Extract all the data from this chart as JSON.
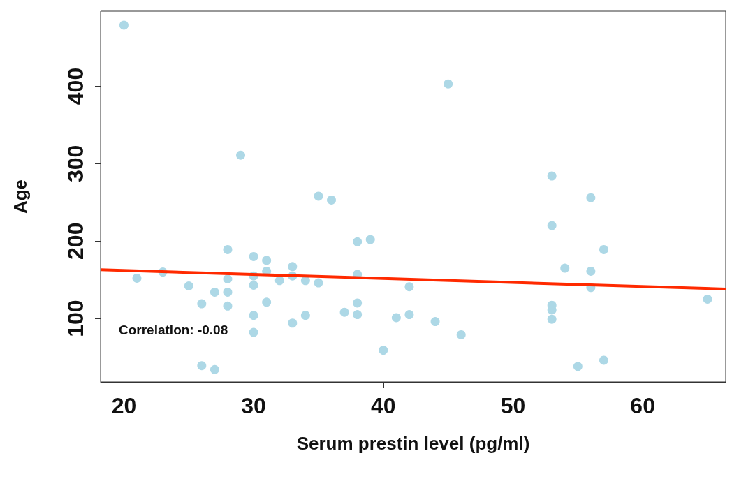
{
  "chart_data": {
    "type": "scatter",
    "xlabel": "Serum prestin level (pg/ml)",
    "ylabel": "Age",
    "xlim": [
      18.2,
      66.4
    ],
    "ylim": [
      18,
      497
    ],
    "xticks": [
      20,
      30,
      40,
      50,
      60
    ],
    "yticks": [
      100,
      200,
      300,
      400
    ],
    "grid": false,
    "marker": "circle",
    "annotations": [
      "Correlation: -0.08"
    ],
    "series": [
      {
        "color": "#add8e6",
        "x": [
          20,
          21,
          23,
          25,
          26,
          26,
          27,
          27,
          28,
          28,
          28,
          28,
          29,
          30,
          30,
          30,
          30,
          30,
          31,
          31,
          31,
          32,
          33,
          33,
          33,
          34,
          34,
          35,
          35,
          36,
          37,
          38,
          38,
          38,
          38,
          39,
          40,
          41,
          42,
          42,
          44,
          45,
          46,
          53,
          53,
          53,
          53,
          53,
          54,
          55,
          56,
          56,
          56,
          57,
          57,
          65
        ],
        "values": [
          479,
          152,
          160,
          142,
          119,
          39,
          134,
          34,
          189,
          151,
          134,
          116,
          311,
          180,
          155,
          143,
          104,
          82,
          175,
          161,
          121,
          149,
          167,
          155,
          94,
          149,
          104,
          258,
          146,
          253,
          108,
          199,
          157,
          120,
          105,
          202,
          59,
          101,
          141,
          105,
          96,
          403,
          79,
          284,
          220,
          117,
          111,
          99,
          165,
          38,
          256,
          161,
          140,
          189,
          46,
          125
        ]
      },
      {
        "type": "line",
        "color": "#ff2a00",
        "x": [
          18.2,
          66.4
        ],
        "values": [
          163,
          138
        ],
        "line_style": "solid",
        "marker": "none"
      }
    ]
  }
}
